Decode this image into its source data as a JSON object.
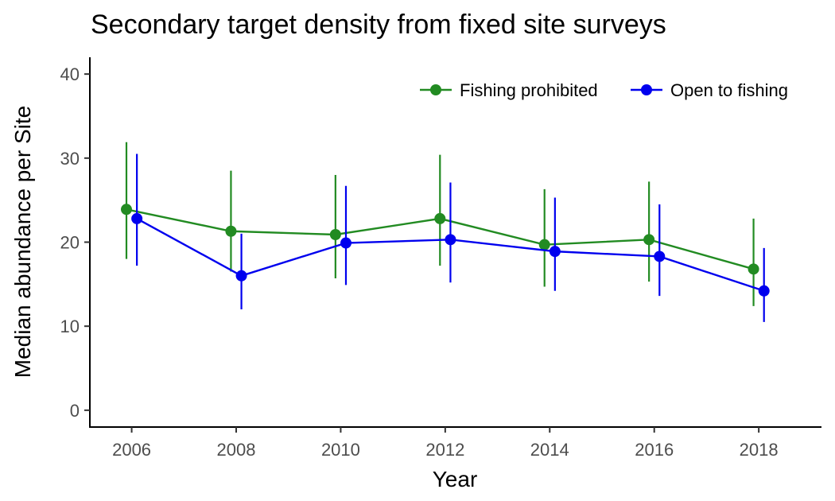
{
  "chart_data": {
    "type": "line",
    "title": "Secondary target density from fixed site surveys",
    "xlabel": "Year",
    "ylabel": "Median abundance per Site",
    "x": [
      2006,
      2008,
      2010,
      2012,
      2014,
      2016,
      2018
    ],
    "x_ticks": [
      "2006",
      "2008",
      "2010",
      "2012",
      "2014",
      "2016",
      "2018"
    ],
    "xlim": [
      2005.2,
      2019.2
    ],
    "ylim": [
      -2,
      42
    ],
    "y_ticks": [
      "0",
      "10",
      "20",
      "30",
      "40"
    ],
    "y_tick_values": [
      0,
      10,
      20,
      30,
      40
    ],
    "grid": false,
    "legend_position": "top-right",
    "series": [
      {
        "name": "Fishing prohibited",
        "color": "#228B22",
        "values": [
          23.9,
          21.3,
          20.9,
          22.8,
          19.7,
          20.3,
          16.8
        ],
        "lower": [
          18.0,
          16.5,
          15.7,
          17.2,
          14.7,
          15.3,
          12.4
        ],
        "upper": [
          31.9,
          28.5,
          28.0,
          30.4,
          26.3,
          27.2,
          22.8
        ]
      },
      {
        "name": "Open to fishing",
        "color": "#0000EE",
        "values": [
          22.8,
          16.0,
          19.9,
          20.3,
          18.9,
          18.3,
          14.2
        ],
        "lower": [
          17.2,
          12.0,
          14.9,
          15.2,
          14.2,
          13.6,
          10.5
        ],
        "upper": [
          30.5,
          21.0,
          26.7,
          27.1,
          25.3,
          24.5,
          19.3
        ]
      }
    ]
  }
}
